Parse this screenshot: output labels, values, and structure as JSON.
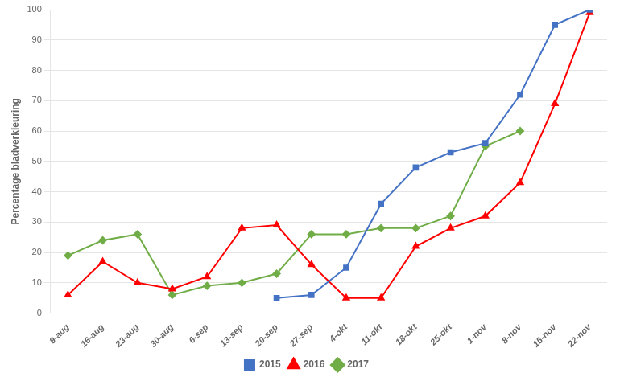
{
  "chart_data": {
    "type": "line",
    "categories": [
      "9-aug",
      "16-aug",
      "23-aug",
      "30-aug",
      "6-sep",
      "13-sep",
      "20-sep",
      "27-sep",
      "4-okt",
      "11-okt",
      "18-okt",
      "25-okt",
      "1-nov",
      "8-nov",
      "15-nov",
      "22-nov"
    ],
    "series": [
      {
        "name": "2015",
        "color": "#4472C4",
        "marker": "square",
        "values": [
          null,
          null,
          null,
          null,
          null,
          null,
          5,
          6,
          15,
          36,
          48,
          53,
          56,
          72,
          95,
          100
        ]
      },
      {
        "name": "2016",
        "color": "#FF0000",
        "marker": "triangle",
        "values": [
          6,
          17,
          10,
          8,
          12,
          28,
          29,
          16,
          5,
          5,
          22,
          28,
          32,
          43,
          69,
          99
        ]
      },
      {
        "name": "2017",
        "color": "#70AD47",
        "marker": "diamond",
        "values": [
          19,
          24,
          26,
          6,
          9,
          10,
          13,
          26,
          26,
          28,
          28,
          32,
          55,
          60,
          null,
          null
        ]
      }
    ],
    "ylabel": "Percentage bladverkleuring",
    "ylim": [
      0,
      100
    ],
    "yticks": [
      0,
      10,
      20,
      30,
      40,
      50,
      60,
      70,
      80,
      90,
      100
    ],
    "grid": "y",
    "legend": "bottom"
  }
}
